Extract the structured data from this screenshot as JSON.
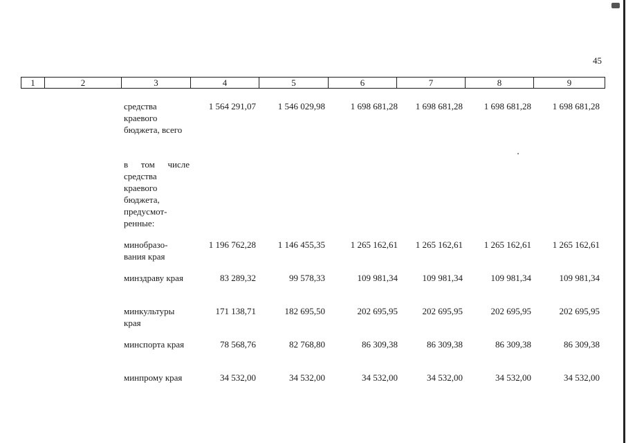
{
  "page": {
    "number": "45"
  },
  "header_columns": [
    "1",
    "2",
    "3",
    "4",
    "5",
    "6",
    "7",
    "8",
    "9"
  ],
  "rows": [
    {
      "label": "средства краевого бюджета, всего",
      "values": [
        "1 564 291,07",
        "1 546 029,98",
        "1 698 681,28",
        "1 698 681,28",
        "1 698 681,28",
        "1 698 681,28"
      ]
    },
    {
      "label": "в том числе средства краевого бюджета, предусмот- ренные:",
      "values": []
    },
    {
      "label": "минобразо- вания края",
      "values": [
        "1 196 762,28",
        "1 146 455,35",
        "1 265 162,61",
        "1 265 162,61",
        "1 265 162,61",
        "1 265 162,61"
      ]
    },
    {
      "label": "минздраву края",
      "values": [
        "83 289,32",
        "99 578,33",
        "109 981,34",
        "109 981,34",
        "109 981,34",
        "109 981,34"
      ]
    },
    {
      "label": "минкультуры края",
      "values": [
        "171 138,71",
        "182 695,50",
        "202 695,95",
        "202 695,95",
        "202 695,95",
        "202 695,95"
      ]
    },
    {
      "label": "минспорта края",
      "values": [
        "78 568,76",
        "82 768,80",
        "86 309,38",
        "86 309,38",
        "86 309,38",
        "86 309,38"
      ]
    },
    {
      "label": "минпрому края",
      "values": [
        "34 532,00",
        "34 532,00",
        "34 532,00",
        "34 532,00",
        "34 532,00",
        "34 532,00"
      ]
    }
  ]
}
